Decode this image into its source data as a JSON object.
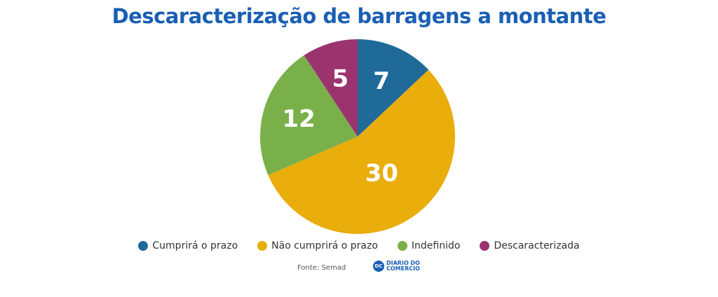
{
  "chart_data": {
    "type": "pie",
    "title": "Descaracterização de barragens a montante",
    "categories": [
      "Cumprirá o prazo",
      "Não cumprirá o prazo",
      "Indefinido",
      "Descaracterizada"
    ],
    "values": [
      7,
      30,
      12,
      5
    ],
    "colors": [
      "#1f6a98",
      "#e9ad0c",
      "#7ab04a",
      "#9b346e"
    ],
    "labels": [
      "7",
      "30",
      "12",
      "5"
    ],
    "legend_position": "bottom"
  },
  "source": "Fonte: Semad",
  "logo": {
    "badge": "DC",
    "line1": "DIARIO DO",
    "line2": "COMERCIO"
  }
}
